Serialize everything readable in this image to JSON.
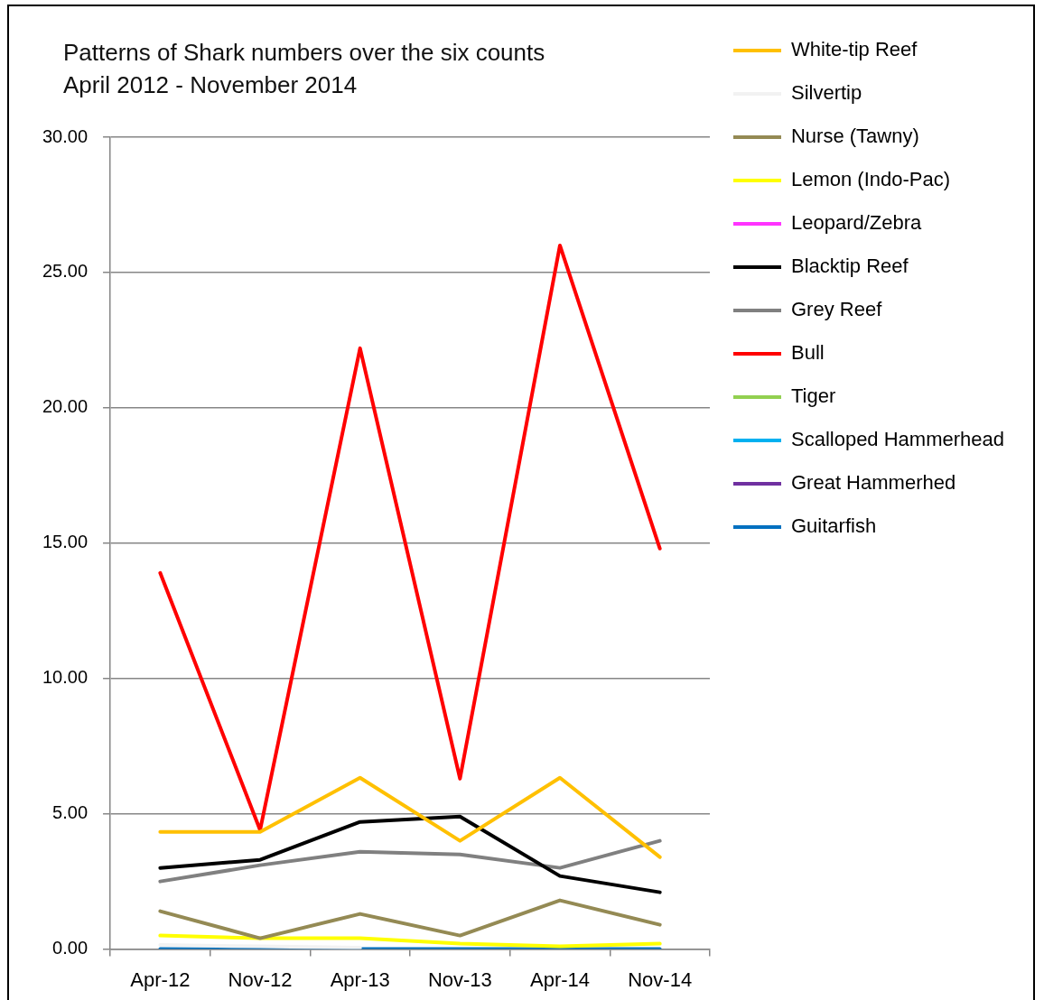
{
  "chart_data": {
    "type": "line",
    "title": "Patterns of Shark numbers over the six counts",
    "subtitle": "April 2012 - November 2014",
    "categories": [
      "Apr-12",
      "Nov-12",
      "Apr-13",
      "Nov-13",
      "Apr-14",
      "Nov-14"
    ],
    "series": [
      {
        "name": "White-tip Reef",
        "color": "#ffc000",
        "values": [
          4.33,
          4.33,
          6.33,
          4.0,
          6.33,
          3.4
        ]
      },
      {
        "name": "Silvertip",
        "color": "#f2f2f2",
        "values": [
          0.15,
          0.1,
          0.05,
          null,
          null,
          null
        ]
      },
      {
        "name": "Nurse (Tawny)",
        "color": "#948a54",
        "values": [
          1.4,
          0.4,
          1.3,
          0.5,
          1.8,
          0.9
        ]
      },
      {
        "name": "Lemon (Indo-Pac)",
        "color": "#ffff00",
        "values": [
          0.5,
          0.4,
          0.4,
          0.2,
          0.1,
          0.2
        ]
      },
      {
        "name": "Leopard/Zebra",
        "color": "#ff33ff",
        "values": [
          null,
          null,
          null,
          null,
          null,
          null
        ]
      },
      {
        "name": "Blacktip Reef",
        "color": "#000000",
        "values": [
          3.0,
          3.3,
          4.7,
          4.9,
          2.7,
          2.1
        ]
      },
      {
        "name": "Grey Reef",
        "color": "#808080",
        "values": [
          2.5,
          3.1,
          3.6,
          3.5,
          3.0,
          4.0
        ]
      },
      {
        "name": "Bull",
        "color": "#ff0000",
        "values": [
          13.9,
          4.4,
          22.2,
          6.3,
          26.0,
          14.8
        ]
      },
      {
        "name": "Tiger",
        "color": "#92d050",
        "values": [
          null,
          null,
          null,
          null,
          null,
          null
        ]
      },
      {
        "name": "Scalloped Hammerhead",
        "color": "#00b0f0",
        "values": [
          null,
          null,
          null,
          null,
          null,
          null
        ]
      },
      {
        "name": "Great Hammerhed",
        "color": "#7030a0",
        "values": [
          null,
          null,
          null,
          null,
          null,
          null
        ]
      },
      {
        "name": "Guitarfish",
        "color": "#0070c0",
        "values": [
          0,
          0,
          0,
          0,
          0,
          0
        ]
      }
    ],
    "ylim": [
      0,
      30
    ],
    "yticks": [
      {
        "value": 0,
        "label": "0.00"
      },
      {
        "value": 5,
        "label": "5.00"
      },
      {
        "value": 10,
        "label": "10.00"
      },
      {
        "value": 15,
        "label": "15.00"
      },
      {
        "value": 20,
        "label": "20.00"
      },
      {
        "value": 25,
        "label": "25.00"
      },
      {
        "value": 30,
        "label": "30.00"
      }
    ],
    "grid": "y",
    "legend": "right",
    "line_style": "solid"
  }
}
